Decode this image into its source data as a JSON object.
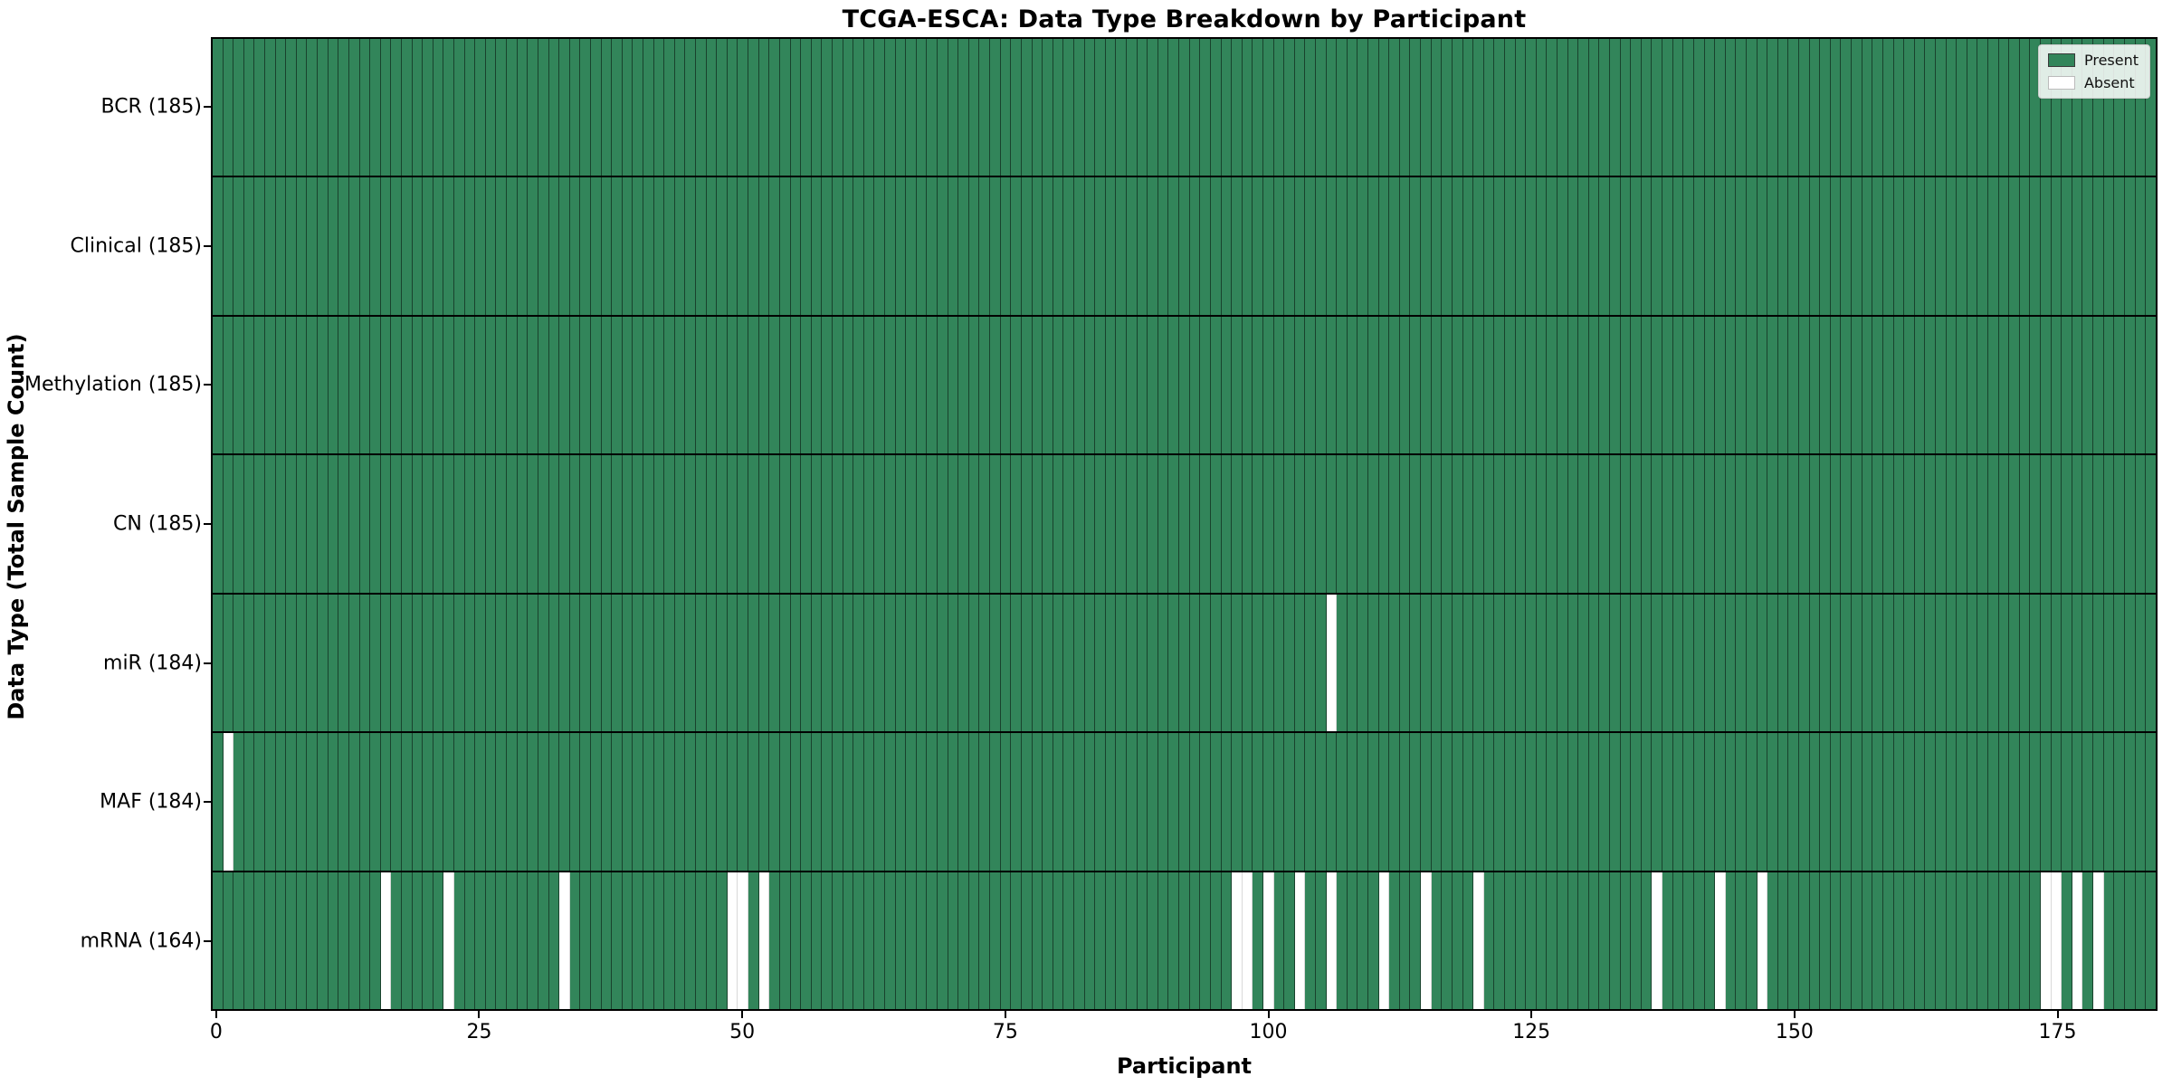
{
  "title": "TCGA-ESCA: Data Type Breakdown by Participant",
  "axes": {
    "x_label": "Participant",
    "y_label": "Data Type (Total Sample Count)"
  },
  "legend": {
    "present_label": "Present",
    "absent_label": "Absent"
  },
  "colors": {
    "present": "#32855a",
    "absent": "#ffffff",
    "cell_edge": "rgba(0,0,0,0.5)",
    "row_separator": "#000000"
  },
  "chart_data": {
    "type": "heatmap",
    "title": "TCGA-ESCA: Data Type Breakdown by Participant",
    "xlabel": "Participant",
    "ylabel": "Data Type (Total Sample Count)",
    "n_participants": 185,
    "x_ticks": [
      0,
      25,
      50,
      75,
      100,
      125,
      150,
      175
    ],
    "legend_entries": [
      "Present",
      "Absent"
    ],
    "legend_position": "upper right",
    "grid": "cell edges only",
    "rows": [
      {
        "label": "BCR (185)",
        "data_type": "BCR",
        "present_count": 185,
        "absent_participants": []
      },
      {
        "label": "Clinical (185)",
        "data_type": "Clinical",
        "present_count": 185,
        "absent_participants": []
      },
      {
        "label": "Methylation (185)",
        "data_type": "Methylation",
        "present_count": 185,
        "absent_participants": []
      },
      {
        "label": "CN (185)",
        "data_type": "CN",
        "present_count": 185,
        "absent_participants": []
      },
      {
        "label": "miR (184)",
        "data_type": "miR",
        "present_count": 184,
        "absent_participants": [
          106
        ]
      },
      {
        "label": "MAF (184)",
        "data_type": "MAF",
        "present_count": 184,
        "absent_participants": [
          1
        ]
      },
      {
        "label": "mRNA (164)",
        "data_type": "mRNA",
        "present_count": 164,
        "absent_participants": [
          16,
          22,
          33,
          49,
          50,
          52,
          97,
          98,
          100,
          103,
          106,
          111,
          115,
          120,
          137,
          143,
          147,
          174,
          175,
          177,
          179
        ]
      }
    ]
  }
}
